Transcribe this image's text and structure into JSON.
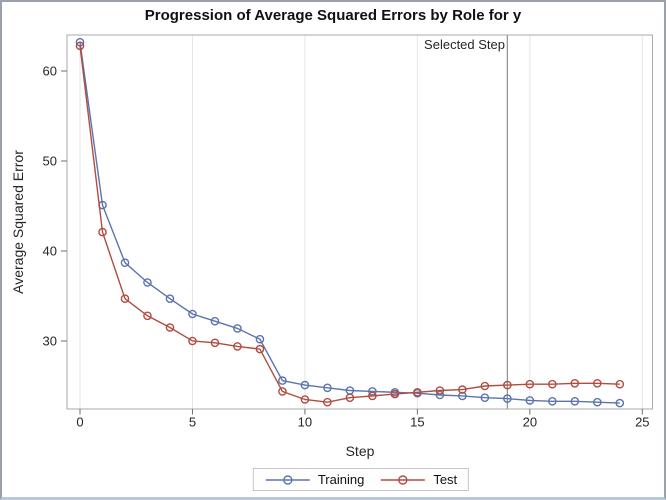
{
  "figure": {
    "border_color": "#9aa1aa",
    "border_bottom_color": "#bac7de"
  },
  "chart_data": {
    "type": "line",
    "title": "Progression of Average Squared Errors by Role for y",
    "xlabel": "Step",
    "ylabel": "Average Squared Error",
    "x_ticks": [
      0,
      5,
      10,
      15,
      20,
      25
    ],
    "y_ticks": [
      30,
      40,
      50,
      60
    ],
    "xlim": [
      0,
      25
    ],
    "ylim": [
      22.4,
      64
    ],
    "grid": "vertical-only",
    "legend_position": "bottom-center",
    "marker": "open-circle",
    "x": [
      0,
      1,
      2,
      3,
      4,
      5,
      6,
      7,
      8,
      9,
      10,
      11,
      12,
      13,
      14,
      15,
      16,
      17,
      18,
      19,
      20,
      21,
      22,
      23,
      24
    ],
    "series": [
      {
        "name": "Training",
        "color": "#5b74ae",
        "values": [
          63.2,
          45.1,
          38.7,
          36.5,
          34.7,
          33.0,
          32.2,
          31.4,
          30.2,
          25.6,
          25.1,
          24.8,
          24.5,
          24.4,
          24.3,
          24.2,
          24.0,
          23.9,
          23.7,
          23.6,
          23.4,
          23.3,
          23.3,
          23.2,
          23.1
        ]
      },
      {
        "name": "Test",
        "color": "#b24c41",
        "values": [
          62.8,
          42.1,
          34.7,
          32.8,
          31.5,
          30.0,
          29.8,
          29.4,
          29.1,
          24.4,
          23.5,
          23.2,
          23.7,
          23.9,
          24.1,
          24.3,
          24.5,
          24.6,
          25.0,
          25.1,
          25.2,
          25.2,
          25.3,
          25.3,
          25.2
        ]
      }
    ],
    "reference_line": {
      "x": 19,
      "label": "Selected Step"
    },
    "style": {
      "grid_color": "#e6e6e6",
      "ref_line_color": "#909090",
      "frame_color": "#aaaaaa",
      "tick_color": "#6e6e6e",
      "tick_label_color": "#262626"
    }
  }
}
